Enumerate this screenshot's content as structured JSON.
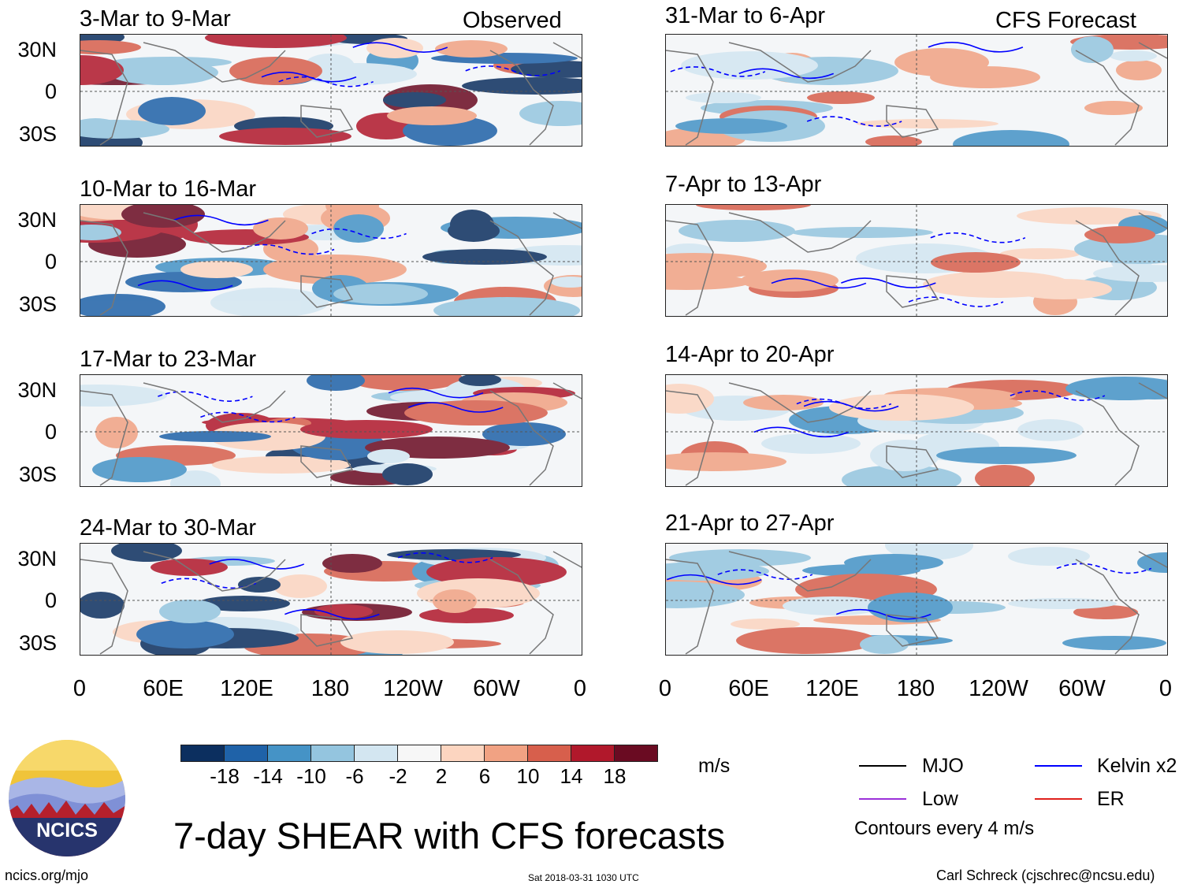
{
  "header": {
    "observed_label": "Observed",
    "forecast_label": "CFS Forecast"
  },
  "observed_panels": [
    {
      "title": "3-Mar to 9-Mar"
    },
    {
      "title": "10-Mar to 16-Mar"
    },
    {
      "title": "17-Mar to 23-Mar"
    },
    {
      "title": "24-Mar to 30-Mar"
    }
  ],
  "forecast_panels": [
    {
      "title": "31-Mar to 6-Apr"
    },
    {
      "title": "7-Apr to 13-Apr"
    },
    {
      "title": "14-Apr to 20-Apr"
    },
    {
      "title": "21-Apr to 27-Apr"
    }
  ],
  "lat_labels": [
    "30N",
    "0",
    "30S"
  ],
  "lon_labels": [
    "0",
    "60E",
    "120E",
    "180",
    "120W",
    "60W",
    "0"
  ],
  "colorbar": {
    "ticks": [
      "-18",
      "-14",
      "-10",
      "-6",
      "-2",
      "2",
      "6",
      "10",
      "14",
      "18"
    ],
    "colors": [
      "#0c2f5f",
      "#1f62a8",
      "#4593c6",
      "#94c5df",
      "#d3e6f1",
      "#f7f7f7",
      "#fcd5c0",
      "#f1a283",
      "#d75f4c",
      "#b1182b",
      "#6a0b22"
    ],
    "units": "m/s"
  },
  "legend": {
    "items": [
      {
        "label": "MJO",
        "color": "#000000"
      },
      {
        "label": "Kelvin x2",
        "color": "#0000ff"
      },
      {
        "label": "Low",
        "color": "#9b30d9"
      },
      {
        "label": "ER",
        "color": "#e0201b"
      }
    ],
    "note": "Contours every 4 m/s"
  },
  "logo": {
    "text": "NCICS"
  },
  "main_title": "7-day SHEAR with CFS forecasts",
  "footer": {
    "url": "ncics.org/mjo",
    "timestamp": "Sat 2018-03-31 1030 UTC",
    "credit": "Carl Schreck (cjschrec@ncsu.edu)"
  }
}
